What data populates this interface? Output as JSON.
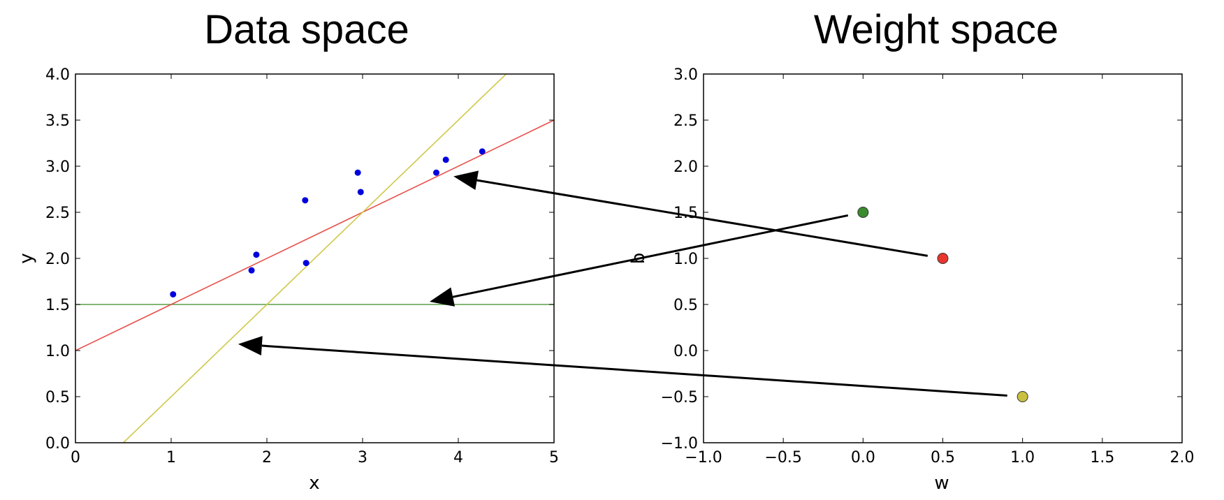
{
  "chart_data": [
    {
      "name": "data-space",
      "type": "scatter",
      "title": "Data space",
      "xlabel": "x",
      "ylabel": "y",
      "xlim": [
        0,
        5
      ],
      "ylim": [
        0,
        4
      ],
      "grid": false,
      "xticks": [
        0,
        1,
        2,
        3,
        4,
        5
      ],
      "xtick_labels": [
        "0",
        "1",
        "2",
        "3",
        "4",
        "5"
      ],
      "yticks": [
        0,
        0.5,
        1,
        1.5,
        2,
        2.5,
        3,
        3.5,
        4
      ],
      "ytick_labels": [
        "0.0",
        "0.5",
        "1.0",
        "1.5",
        "2.0",
        "2.5",
        "3.0",
        "3.5",
        "4.0"
      ],
      "points": {
        "color": "#0000dd",
        "x": [
          1.02,
          1.84,
          1.89,
          2.4,
          2.41,
          2.95,
          2.98,
          3.77,
          3.87,
          4.25
        ],
        "y": [
          1.61,
          1.87,
          2.04,
          2.63,
          1.95,
          2.93,
          2.72,
          2.93,
          3.07,
          3.16
        ]
      },
      "lines": [
        {
          "name": "green-line",
          "w": 0.0,
          "b": 1.5,
          "color": "#5a9e48"
        },
        {
          "name": "red-line",
          "w": 0.5,
          "b": 1.0,
          "color": "#e8504a"
        },
        {
          "name": "yellow-line",
          "w": 1.0,
          "b": -0.5,
          "color": "#d0c84a"
        }
      ]
    },
    {
      "name": "weight-space",
      "type": "scatter",
      "title": "Weight space",
      "xlabel": "w",
      "ylabel": "b",
      "xlim": [
        -1.0,
        2.0
      ],
      "ylim": [
        -1.0,
        3.0
      ],
      "grid": false,
      "xticks": [
        -1.0,
        -0.5,
        0.0,
        0.5,
        1.0,
        1.5,
        2.0
      ],
      "xtick_labels": [
        "−1.0",
        "−0.5",
        "0.0",
        "0.5",
        "1.0",
        "1.5",
        "2.0"
      ],
      "yticks": [
        -1.0,
        -0.5,
        0.0,
        0.5,
        1.0,
        1.5,
        2.0,
        2.5,
        3.0
      ],
      "ytick_labels": [
        "−1.0",
        "−0.5",
        "0.0",
        "0.5",
        "1.0",
        "1.5",
        "2.0",
        "2.5",
        "3.0"
      ],
      "points": [
        {
          "name": "green-point",
          "w": 0.0,
          "b": 1.5,
          "color": "#3a8a2e"
        },
        {
          "name": "red-point",
          "w": 0.5,
          "b": 1.0,
          "color": "#e8352e"
        },
        {
          "name": "yellow-point",
          "w": 1.0,
          "b": -0.5,
          "color": "#c8c040"
        }
      ]
    }
  ],
  "arrows": [
    {
      "name": "arrow-red-to-red-line",
      "from": "red-point",
      "to_line": "red-line",
      "to_x": 3.95,
      "to_y": 2.89
    },
    {
      "name": "arrow-green-to-green-line",
      "from": "green-point",
      "to_line": "green-line",
      "to_x": 3.7,
      "to_y": 1.53
    },
    {
      "name": "arrow-yellow-to-yellow-line",
      "from": "yellow-point",
      "to_line": "yellow-line",
      "to_x": 1.7,
      "to_y": 1.07
    }
  ]
}
